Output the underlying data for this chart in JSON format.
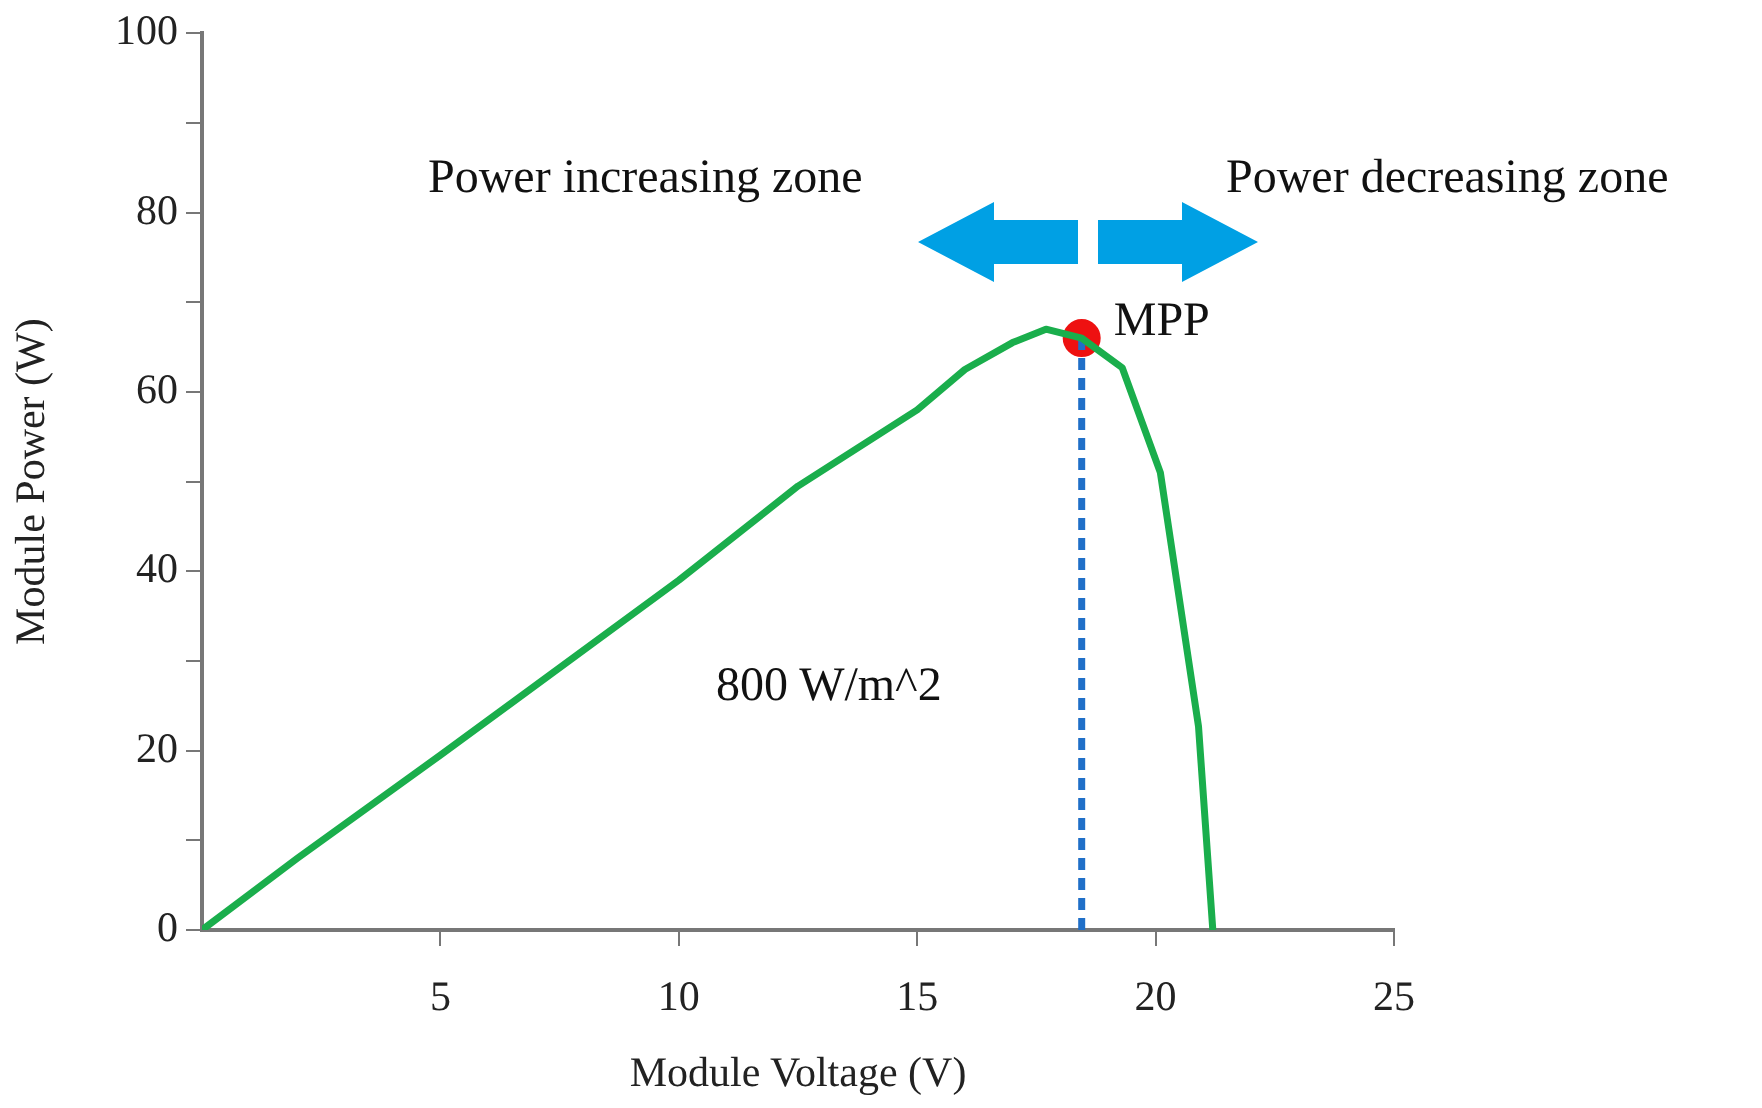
{
  "chart_data": {
    "type": "line",
    "xlabel": "Module Voltage (V)",
    "ylabel": "Module Power (W)",
    "xlim": [
      0,
      25
    ],
    "xticks": [
      5,
      10,
      15,
      20,
      25
    ],
    "ylim": [
      0,
      100
    ],
    "yticks": [
      0,
      {
        "value": 10,
        "label": null
      },
      20,
      {
        "value": 30,
        "label": null
      },
      40,
      {
        "value": 50,
        "label": null
      },
      60,
      {
        "value": 70,
        "label": null
      },
      80,
      {
        "value": 90,
        "label": null
      },
      100
    ],
    "grid": false,
    "legend": false,
    "marker": "none",
    "series": [
      {
        "color": "#1aae4c",
        "line_style": "solid",
        "x": [
          0,
          2,
          5,
          10,
          12.5,
          15,
          16,
          17,
          17.7,
          18.45,
          19.3,
          20.1,
          20.9,
          21.2
        ],
        "values": [
          0,
          8,
          19.5,
          39,
          49.5,
          58,
          62.5,
          65.5,
          67,
          66,
          62.7,
          51,
          22.7,
          0
        ]
      },
      {
        "color": "#1f6fc8",
        "line_style": "dashed",
        "x": [
          18.45,
          18.45
        ],
        "values": [
          0,
          66
        ]
      },
      {
        "type": "scatter",
        "name": "MPP",
        "color": "#ee1111",
        "marker": "circle",
        "x": [
          18.45
        ],
        "values": [
          66
        ]
      }
    ],
    "annotations": [
      "Power increasing zone",
      "Power decreasing zone",
      "800 W/m^2"
    ]
  }
}
